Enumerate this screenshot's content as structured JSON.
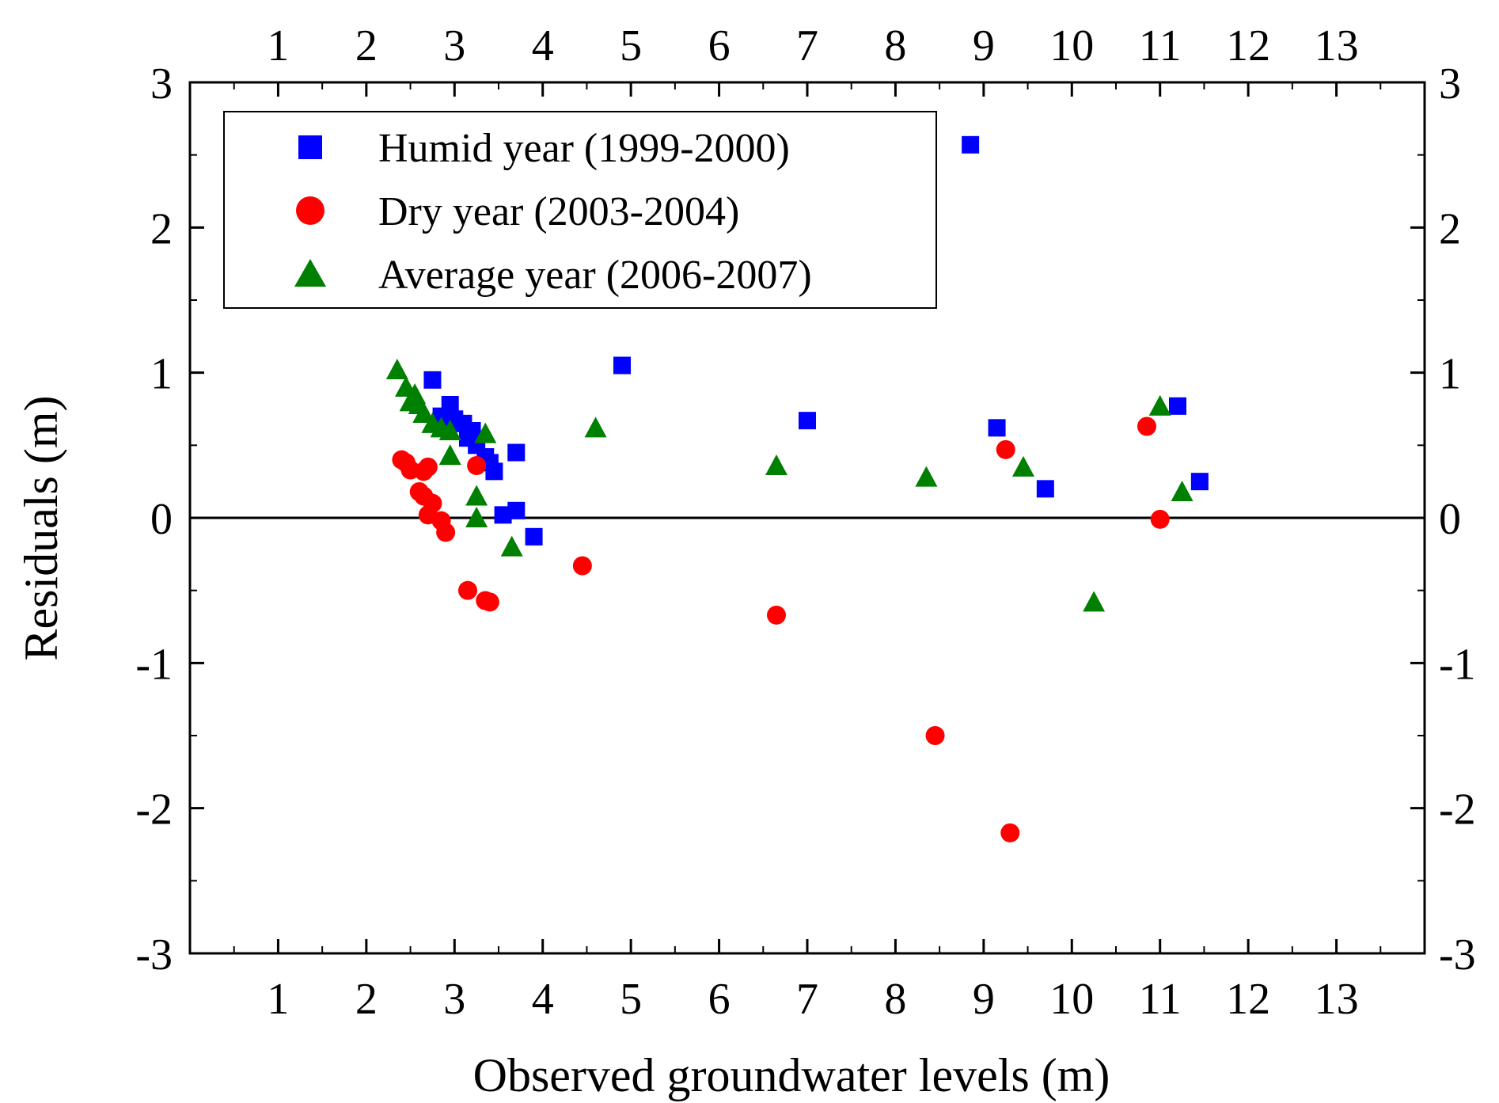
{
  "chart_data": {
    "type": "scatter",
    "title": "",
    "xlabel": "Observed groundwater levels (m)",
    "ylabel": "Residuals (m)",
    "xlim": [
      0,
      14
    ],
    "ylim": [
      -3,
      3
    ],
    "xticks": [
      1,
      2,
      3,
      4,
      5,
      6,
      7,
      8,
      9,
      10,
      11,
      12,
      13
    ],
    "yticks": [
      -3,
      -2,
      -1,
      0,
      1,
      2,
      3
    ],
    "grid": false,
    "zero_line": true,
    "mirror_ticks": true,
    "legend_position": "top-left",
    "series": [
      {
        "name": "Humid year (1999-2000)",
        "marker": "square",
        "color": "#0000ff",
        "points": [
          [
            2.75,
            0.95
          ],
          [
            2.95,
            0.78
          ],
          [
            2.85,
            0.7
          ],
          [
            3.0,
            0.68
          ],
          [
            3.1,
            0.65
          ],
          [
            3.2,
            0.6
          ],
          [
            3.15,
            0.55
          ],
          [
            3.25,
            0.5
          ],
          [
            3.35,
            0.42
          ],
          [
            3.4,
            0.38
          ],
          [
            3.45,
            0.32
          ],
          [
            3.7,
            0.45
          ],
          [
            3.55,
            0.02
          ],
          [
            3.7,
            0.05
          ],
          [
            3.9,
            -0.13
          ],
          [
            4.9,
            1.05
          ],
          [
            7.0,
            0.67
          ],
          [
            8.85,
            2.57
          ],
          [
            9.15,
            0.62
          ],
          [
            9.7,
            0.2
          ],
          [
            11.2,
            0.77
          ],
          [
            11.45,
            0.25
          ]
        ]
      },
      {
        "name": "Dry year (2003-2004)",
        "marker": "circle",
        "color": "#ff0000",
        "points": [
          [
            2.4,
            0.4
          ],
          [
            2.45,
            0.38
          ],
          [
            2.5,
            0.33
          ],
          [
            2.65,
            0.32
          ],
          [
            2.7,
            0.35
          ],
          [
            2.6,
            0.18
          ],
          [
            2.65,
            0.15
          ],
          [
            2.75,
            0.1
          ],
          [
            2.7,
            0.02
          ],
          [
            2.85,
            -0.02
          ],
          [
            2.9,
            -0.1
          ],
          [
            3.25,
            0.36
          ],
          [
            3.15,
            -0.5
          ],
          [
            3.35,
            -0.57
          ],
          [
            3.4,
            -0.58
          ],
          [
            4.45,
            -0.33
          ],
          [
            6.65,
            -0.67
          ],
          [
            8.45,
            -1.5
          ],
          [
            9.3,
            -2.17
          ],
          [
            9.25,
            0.47
          ],
          [
            10.85,
            0.63
          ],
          [
            11.0,
            -0.01
          ]
        ]
      },
      {
        "name": "Average year (2006-2007)",
        "marker": "triangle",
        "color": "#008000",
        "points": [
          [
            2.35,
            1.02
          ],
          [
            2.45,
            0.9
          ],
          [
            2.55,
            0.85
          ],
          [
            2.5,
            0.8
          ],
          [
            2.6,
            0.78
          ],
          [
            2.65,
            0.72
          ],
          [
            2.75,
            0.65
          ],
          [
            2.85,
            0.62
          ],
          [
            2.95,
            0.6
          ],
          [
            2.95,
            0.43
          ],
          [
            3.35,
            0.58
          ],
          [
            3.25,
            0.15
          ],
          [
            3.25,
            0.0
          ],
          [
            3.65,
            -0.2
          ],
          [
            4.6,
            0.62
          ],
          [
            6.65,
            0.36
          ],
          [
            8.35,
            0.28
          ],
          [
            9.45,
            0.35
          ],
          [
            10.25,
            -0.58
          ],
          [
            11.0,
            0.77
          ],
          [
            11.25,
            0.18
          ]
        ]
      }
    ]
  }
}
